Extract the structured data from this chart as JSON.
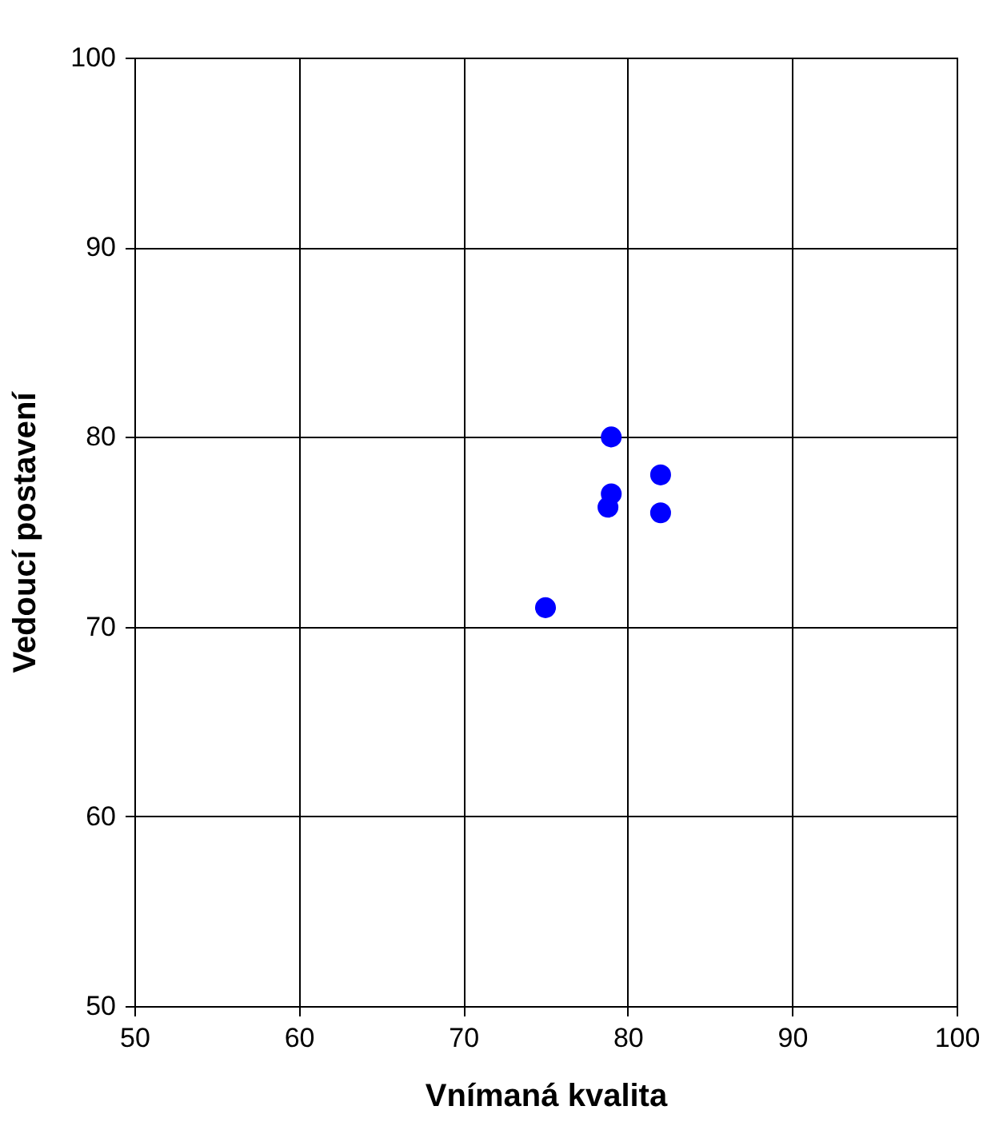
{
  "chart_data": {
    "type": "scatter",
    "xlabel": "Vnímaná kvalita",
    "ylabel": "Vedoucí postavení",
    "x": [
      79,
      82,
      79,
      78.8,
      82,
      75
    ],
    "series": [
      {
        "color": "#0000ff",
        "values": [
          80,
          78,
          77,
          76.3,
          76,
          71
        ]
      }
    ],
    "xlim": [
      50,
      100
    ],
    "xticks": [
      50,
      60,
      70,
      80,
      90,
      100
    ],
    "ylim": [
      50,
      100
    ],
    "yticks": [
      50,
      60,
      70,
      80,
      90,
      100
    ],
    "grid": true,
    "marker": "circle"
  }
}
